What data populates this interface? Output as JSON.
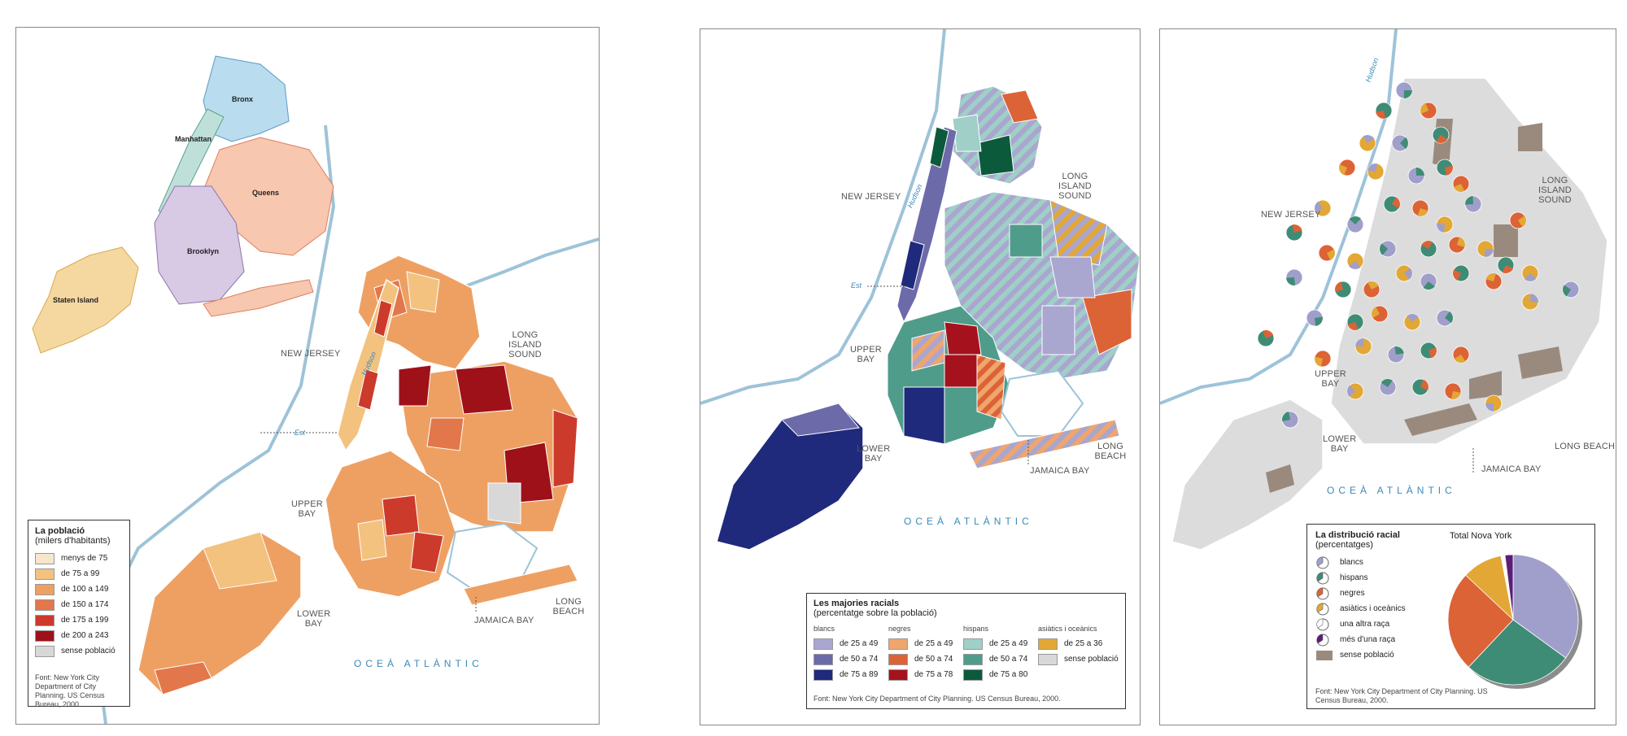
{
  "panel1": {
    "boroughs": [
      "Bronx",
      "Manhattan",
      "Queens",
      "Brooklyn",
      "Staten Island"
    ],
    "labels": {
      "new_jersey": "NEW JERSEY",
      "long_island_sound": "LONG\nISLAND\nSOUND",
      "hudson": "Hudson",
      "est": "Est",
      "upper_bay": "UPPER\nBAY",
      "lower_bay": "LOWER\nBAY",
      "long_beach": "LONG BEACH",
      "jamaica_bay": "JAMAICA BAY",
      "ocean": "OCEÀ ATLÀNTIC"
    },
    "legend": {
      "title": "La població",
      "subtitle": "(milers d'habitants)",
      "items": [
        {
          "label": "menys de 75",
          "color": "#f6e6cc"
        },
        {
          "label": "de 75 a 99",
          "color": "#f3c27f"
        },
        {
          "label": "de 100 a 149",
          "color": "#eea063"
        },
        {
          "label": "de 150 a 174",
          "color": "#e2774b"
        },
        {
          "label": "de 175 a 199",
          "color": "#cc3a2c"
        },
        {
          "label": "de 200 a 243",
          "color": "#9e1119"
        },
        {
          "label": "sense població",
          "color": "#d8d8d8"
        }
      ],
      "source": "Font: New York City Department of City Planning. US Census Bureau, 2000."
    }
  },
  "panel2": {
    "labels": {
      "new_jersey": "NEW JERSEY",
      "long_island_sound": "LONG\nISLAND\nSOUND",
      "hudson": "Hudson",
      "est": "Est",
      "upper_bay": "UPPER\nBAY",
      "lower_bay": "LOWER\nBAY",
      "long_beach": "LONG BEACH",
      "jamaica_bay": "JAMAICA BAY",
      "ocean": "OCEÀ ATLÀNTIC"
    },
    "legend": {
      "title": "Les majories racials",
      "subtitle": "(percentatge sobre la població)",
      "columns": [
        {
          "header": "blancs",
          "items": [
            {
              "label": "de 25 a 49",
              "color": "#a9a6cf"
            },
            {
              "label": "de 50 a 74",
              "color": "#6d6aaa"
            },
            {
              "label": "de 75 a 89",
              "color": "#1f2a7c"
            }
          ]
        },
        {
          "header": "negres",
          "items": [
            {
              "label": "de 25 a 49",
              "color": "#efa56e"
            },
            {
              "label": "de 50 a 74",
              "color": "#dc6336"
            },
            {
              "label": "de 75 a 78",
              "color": "#a5121d"
            }
          ]
        },
        {
          "header": "hispans",
          "items": [
            {
              "label": "de 25 a 49",
              "color": "#9fcfc7"
            },
            {
              "label": "de 50 a 74",
              "color": "#4f9c8a"
            },
            {
              "label": "de 75 a 80",
              "color": "#0b5a3c"
            }
          ]
        },
        {
          "header": "asiàtics i oceànics",
          "items": [
            {
              "label": "de 25 a 36",
              "color": "#e2a735"
            },
            {
              "label": "sense població",
              "color": "#d8d8d8"
            }
          ]
        }
      ],
      "source": "Font: New York City Department of City Planning. US Census Bureau, 2000."
    }
  },
  "panel3": {
    "labels": {
      "new_jersey": "NEW JERSEY",
      "long_island_sound": "LONG\nISLAND\nSOUND",
      "hudson": "Hudson",
      "upper_bay": "UPPER\nBAY",
      "lower_bay": "LOWER\nBAY",
      "long_beach": "LONG BEACH",
      "jamaica_bay": "JAMAICA BAY",
      "ocean": "OCEÀ ATLÀNTIC"
    },
    "legend": {
      "title": "La distribució racial",
      "subtitle": "(percentatges)",
      "pie_title": "Total Nova York",
      "items": [
        {
          "label": "blancs",
          "color": "#a09fcb"
        },
        {
          "label": "hispans",
          "color": "#3f8c76"
        },
        {
          "label": "negres",
          "color": "#dc6336"
        },
        {
          "label": "asiàtics i oceànics",
          "color": "#e2a735"
        },
        {
          "label": "una altra raça",
          "color": "#ffffff"
        },
        {
          "label": "més d'una raça",
          "color": "#5a1e78"
        },
        {
          "label": "sense població",
          "color": "#9a8a7e"
        }
      ],
      "source": "Font: New York City Department of City Planning. US Census Bureau, 2000."
    }
  },
  "chart_data": {
    "type": "pie",
    "title": "Total Nova York",
    "categories": [
      "blancs",
      "hispans",
      "negres",
      "asiàtics i oceànics",
      "una altra raça",
      "més d'una raça"
    ],
    "values": [
      35,
      27,
      25,
      10,
      1,
      2
    ]
  }
}
